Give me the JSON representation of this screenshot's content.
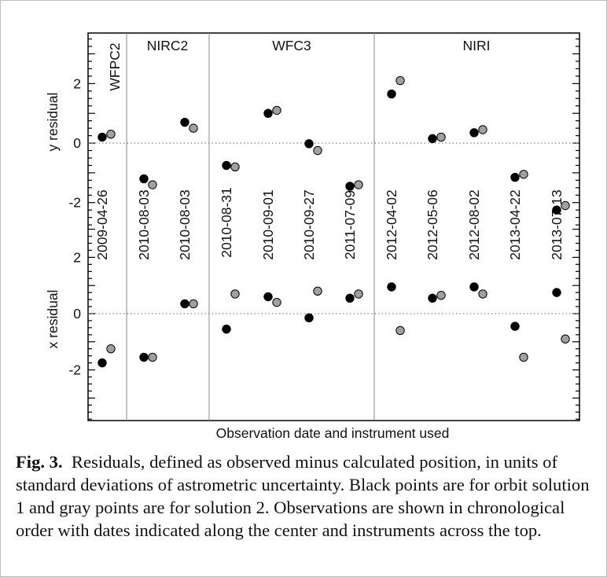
{
  "chart_data": {
    "type": "scatter",
    "xlabel": "Observation date and instrument used",
    "instruments": [
      "WFPC2",
      "NIRC2",
      "WFC3",
      "NIRI"
    ],
    "observations": [
      {
        "date": "2009-04-26",
        "instrument": "WFPC2"
      },
      {
        "date": "2010-08-03",
        "instrument": "NIRC2"
      },
      {
        "date": "2010-08-03",
        "instrument": "NIRC2"
      },
      {
        "date": "2010-08-31",
        "instrument": "WFC3"
      },
      {
        "date": "2010-09-01",
        "instrument": "WFC3"
      },
      {
        "date": "2010-09-27",
        "instrument": "WFC3"
      },
      {
        "date": "2011-07-09",
        "instrument": "WFC3"
      },
      {
        "date": "2012-04-02",
        "instrument": "NIRI"
      },
      {
        "date": "2012-05-06",
        "instrument": "NIRI"
      },
      {
        "date": "2012-08-02",
        "instrument": "NIRI"
      },
      {
        "date": "2013-04-22",
        "instrument": "NIRI"
      },
      {
        "date": "2013-07-13",
        "instrument": "NIRI"
      }
    ],
    "panels": [
      {
        "ylabel": "y residual",
        "yticks": [
          "2",
          "0",
          "-2"
        ],
        "tick_values": [
          2,
          0,
          -2
        ],
        "ylim": [
          -2.8,
          3.7
        ],
        "series": [
          {
            "color": "#000000",
            "values": [
              0.2,
              -1.2,
              0.7,
              -0.75,
              1.0,
              -0.02,
              -1.45,
              1.65,
              0.15,
              0.35,
              -1.15,
              -2.25
            ]
          },
          {
            "color": "#a0a0a0",
            "values": [
              0.3,
              -1.4,
              0.5,
              -0.8,
              1.1,
              -0.25,
              -1.4,
              2.1,
              0.2,
              0.45,
              -1.05,
              -2.1
            ]
          }
        ]
      },
      {
        "ylabel": "x residual",
        "yticks": [
          "2",
          "0",
          "-2"
        ],
        "tick_values": [
          2,
          0,
          -2
        ],
        "ylim": [
          -3.8,
          3.1
        ],
        "series": [
          {
            "color": "#000000",
            "values": [
              -1.75,
              -1.55,
              0.35,
              -0.55,
              0.6,
              -0.15,
              0.55,
              0.95,
              0.55,
              0.95,
              -0.45,
              0.75
            ]
          },
          {
            "color": "#a0a0a0",
            "values": [
              -1.25,
              -1.55,
              0.35,
              0.7,
              0.4,
              0.8,
              0.7,
              -0.6,
              0.65,
              0.7,
              -1.55,
              -0.9
            ]
          }
        ]
      }
    ],
    "grid": false,
    "reference_line": "dotted horizontal line at 0 in each panel"
  },
  "caption": {
    "label": "Fig. 3.",
    "text": "Residuals, defined as observed minus calculated position, in units of standard deviations of astrometric uncertainty.  Black points are for orbit solution 1 and gray points are for solution 2. Observations are shown in chronological order with dates indicated along the center and instruments across the top."
  }
}
